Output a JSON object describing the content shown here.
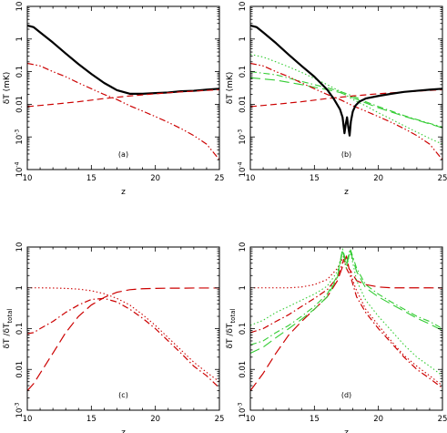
{
  "figure": {
    "colors": {
      "black": "#000000",
      "red": "#cc0000",
      "green": "#33cc33"
    }
  },
  "chart_data": [
    {
      "id": "a",
      "type": "line",
      "panel_label": "(a)",
      "xlabel": "z",
      "ylabel": "δT (mK)",
      "ylabel_parts": [
        {
          "t": "δT  (mK)"
        }
      ],
      "xlim": [
        10,
        25
      ],
      "ylim": [
        0.0001,
        10
      ],
      "yscale": "log",
      "xticks": [
        10,
        15,
        20,
        25
      ],
      "xtick_labels": [
        "10",
        "15",
        "20",
        "25"
      ],
      "yticks": [
        0.0001,
        0.001,
        0.01,
        0.1,
        1,
        10
      ],
      "ytick_labels": [
        {
          "b": "10",
          "e": "-4"
        },
        {
          "b": "10",
          "e": "-3"
        },
        {
          "b": "0.01"
        },
        {
          "b": "0.1"
        },
        {
          "b": "1"
        },
        {
          "b": "10"
        }
      ],
      "series": [
        {
          "color": "#000000",
          "style": "solid",
          "width": 2.2,
          "x": [
            10,
            10.5,
            11,
            12,
            13,
            14,
            15,
            16,
            17,
            18,
            19,
            20,
            21,
            22,
            23,
            24,
            25
          ],
          "y": [
            2.6,
            2.3,
            1.6,
            0.78,
            0.36,
            0.17,
            0.085,
            0.045,
            0.027,
            0.021,
            0.021,
            0.022,
            0.023,
            0.025,
            0.026,
            0.028,
            0.03
          ]
        },
        {
          "color": "#cc0000",
          "style": "dash",
          "width": 1.2,
          "x": [
            10,
            12,
            14,
            16,
            18,
            20,
            22,
            25
          ],
          "y": [
            0.0085,
            0.01,
            0.012,
            0.015,
            0.018,
            0.021,
            0.024,
            0.028
          ]
        },
        {
          "color": "#cc0000",
          "style": "dashdotdot",
          "width": 1.2,
          "x": [
            10,
            11,
            12,
            13,
            14,
            15,
            16,
            17,
            18,
            19,
            20,
            21,
            22,
            23,
            24,
            25
          ],
          "y": [
            0.18,
            0.15,
            0.1,
            0.07,
            0.045,
            0.03,
            0.02,
            0.014,
            0.009,
            0.0062,
            0.0042,
            0.0028,
            0.0018,
            0.0011,
            0.0006,
            0.0002
          ]
        }
      ]
    },
    {
      "id": "b",
      "type": "line",
      "panel_label": "(b)",
      "xlabel": "z",
      "ylabel": "δT (mK)",
      "ylabel_parts": [
        {
          "t": "δT  (mK)"
        }
      ],
      "xlim": [
        10,
        25
      ],
      "ylim": [
        0.0001,
        10
      ],
      "yscale": "log",
      "xticks": [
        10,
        15,
        20,
        25
      ],
      "xtick_labels": [
        "10",
        "15",
        "20",
        "25"
      ],
      "yticks": [
        0.0001,
        0.001,
        0.01,
        0.1,
        1,
        10
      ],
      "ytick_labels": [
        {
          "b": "10",
          "e": "-4"
        },
        {
          "b": "10",
          "e": "-3"
        },
        {
          "b": "0.01"
        },
        {
          "b": "0.1"
        },
        {
          "b": "1"
        },
        {
          "b": "10"
        }
      ],
      "series": [
        {
          "color": "#33cc33",
          "style": "dot",
          "width": 1.1,
          "x": [
            10,
            11,
            12,
            13,
            14,
            15,
            16,
            17,
            18,
            19,
            20,
            21,
            22,
            23,
            24,
            25
          ],
          "y": [
            0.34,
            0.28,
            0.2,
            0.14,
            0.095,
            0.062,
            0.04,
            0.025,
            0.014,
            0.009,
            0.0055,
            0.0035,
            0.0022,
            0.0014,
            0.0009,
            0.0006
          ]
        },
        {
          "color": "#33cc33",
          "style": "dashdot",
          "width": 1.1,
          "x": [
            10,
            12,
            14,
            16,
            17,
            18,
            19,
            20,
            21,
            22,
            23,
            24,
            25
          ],
          "y": [
            0.1,
            0.08,
            0.05,
            0.032,
            0.025,
            0.018,
            0.012,
            0.0085,
            0.0062,
            0.0045,
            0.0034,
            0.0026,
            0.002
          ]
        },
        {
          "color": "#33cc33",
          "style": "longdash",
          "width": 1.1,
          "x": [
            10,
            12,
            14,
            16,
            17,
            18,
            19,
            20,
            21,
            22,
            23,
            24,
            25
          ],
          "y": [
            0.065,
            0.055,
            0.04,
            0.028,
            0.023,
            0.016,
            0.011,
            0.0078,
            0.0058,
            0.0043,
            0.0033,
            0.0025,
            0.0019
          ]
        },
        {
          "color": "#cc0000",
          "style": "dash",
          "width": 1.2,
          "x": [
            10,
            12,
            14,
            16,
            18,
            20,
            22,
            25
          ],
          "y": [
            0.0085,
            0.01,
            0.012,
            0.015,
            0.018,
            0.021,
            0.024,
            0.028
          ]
        },
        {
          "color": "#cc0000",
          "style": "dashdotdot",
          "width": 1.2,
          "x": [
            10,
            11,
            12,
            13,
            14,
            15,
            16,
            17,
            18,
            19,
            20,
            21,
            22,
            23,
            24,
            25
          ],
          "y": [
            0.18,
            0.15,
            0.1,
            0.07,
            0.045,
            0.03,
            0.02,
            0.014,
            0.009,
            0.0062,
            0.0042,
            0.0028,
            0.0018,
            0.0011,
            0.0006,
            0.0002
          ]
        },
        {
          "color": "#000000",
          "style": "solid",
          "width": 2.2,
          "x": [
            10,
            10.5,
            11,
            12,
            13,
            14,
            15,
            16,
            16.5,
            17,
            17.2,
            17.35,
            17.45,
            17.55,
            17.65,
            17.75,
            17.85,
            18.0,
            18.2,
            18.5,
            19,
            20,
            21,
            22,
            23,
            24,
            25
          ],
          "y": [
            2.6,
            2.3,
            1.6,
            0.75,
            0.33,
            0.15,
            0.07,
            0.028,
            0.015,
            0.007,
            0.004,
            0.0013,
            0.0025,
            0.004,
            0.002,
            0.0011,
            0.003,
            0.006,
            0.009,
            0.012,
            0.015,
            0.018,
            0.021,
            0.024,
            0.026,
            0.028,
            0.03
          ]
        }
      ]
    },
    {
      "id": "c",
      "type": "line",
      "panel_label": "(c)",
      "xlabel": "z",
      "ylabel": "δT / δT total",
      "ylabel_parts": [
        {
          "t": "δT  /δT"
        },
        {
          "t": "total",
          "sub": true
        }
      ],
      "xlim": [
        10,
        25
      ],
      "ylim": [
        0.001,
        10
      ],
      "yscale": "log",
      "xticks": [
        10,
        15,
        20,
        25
      ],
      "xtick_labels": [
        "10",
        "15",
        "20",
        "25"
      ],
      "yticks": [
        0.001,
        0.01,
        0.1,
        1,
        10
      ],
      "ytick_labels": [
        {
          "b": "10",
          "e": "-3"
        },
        {
          "b": "0.01"
        },
        {
          "b": "0.1"
        },
        {
          "b": "1"
        },
        {
          "b": "10"
        }
      ],
      "series": [
        {
          "color": "#cc0000",
          "style": "dot",
          "width": 1.1,
          "x": [
            10,
            11,
            12,
            13,
            14,
            15,
            16,
            17,
            18,
            19,
            20,
            21,
            22,
            23,
            24,
            25
          ],
          "y": [
            1,
            1,
            0.99,
            0.97,
            0.93,
            0.85,
            0.72,
            0.55,
            0.38,
            0.22,
            0.12,
            0.06,
            0.03,
            0.015,
            0.0085,
            0.005
          ]
        },
        {
          "color": "#cc0000",
          "style": "dashdot",
          "width": 1.2,
          "x": [
            10,
            10.5,
            11,
            12,
            13,
            14,
            15,
            16,
            17,
            18,
            19,
            20,
            21,
            22,
            23,
            24,
            25
          ],
          "y": [
            0.075,
            0.08,
            0.1,
            0.15,
            0.25,
            0.38,
            0.52,
            0.55,
            0.45,
            0.3,
            0.18,
            0.1,
            0.05,
            0.025,
            0.012,
            0.007,
            0.0035
          ]
        },
        {
          "color": "#cc0000",
          "style": "longdash",
          "width": 1.2,
          "x": [
            10,
            10.5,
            11,
            12,
            13,
            14,
            15,
            16,
            17,
            18,
            19,
            20,
            21,
            22,
            23,
            24,
            25
          ],
          "y": [
            0.003,
            0.0045,
            0.008,
            0.025,
            0.08,
            0.2,
            0.38,
            0.58,
            0.78,
            0.9,
            0.95,
            0.97,
            0.98,
            0.98,
            0.99,
            0.99,
            0.99
          ]
        }
      ]
    },
    {
      "id": "d",
      "type": "line",
      "panel_label": "(d)",
      "xlabel": "z",
      "ylabel": "δT / δT total",
      "ylabel_parts": [
        {
          "t": "δT  /δT"
        },
        {
          "t": "total",
          "sub": true
        }
      ],
      "xlim": [
        10,
        25
      ],
      "ylim": [
        0.001,
        10
      ],
      "yscale": "log",
      "xticks": [
        10,
        15,
        20,
        25
      ],
      "xtick_labels": [
        "10",
        "15",
        "20",
        "25"
      ],
      "yticks": [
        0.001,
        0.01,
        0.1,
        1,
        10
      ],
      "ytick_labels": [
        {
          "b": "10",
          "e": "-3"
        },
        {
          "b": "0.01"
        },
        {
          "b": "0.1"
        },
        {
          "b": "1"
        },
        {
          "b": "10"
        }
      ],
      "series": [
        {
          "color": "#cc0000",
          "style": "dot",
          "width": 1.1,
          "x": [
            10,
            11,
            12,
            13,
            14,
            15,
            16,
            16.8,
            17.3,
            17.5,
            17.7,
            18.2,
            19,
            20,
            21,
            22,
            23,
            24,
            25
          ],
          "y": [
            1,
            1,
            1,
            1,
            1.05,
            1.2,
            1.6,
            3,
            6,
            4,
            3,
            1,
            0.3,
            0.12,
            0.05,
            0.022,
            0.012,
            0.007,
            0.004
          ]
        },
        {
          "color": "#cc0000",
          "style": "dashdot",
          "width": 1.2,
          "x": [
            10,
            11,
            12,
            13,
            14,
            15,
            16,
            16.8,
            17.3,
            17.5,
            17.8,
            18.3,
            19,
            20,
            21,
            22,
            23,
            24,
            25
          ],
          "y": [
            0.08,
            0.1,
            0.15,
            0.22,
            0.35,
            0.55,
            0.9,
            1.8,
            5,
            3,
            2,
            0.6,
            0.25,
            0.1,
            0.045,
            0.02,
            0.01,
            0.006,
            0.0035
          ]
        },
        {
          "color": "#cc0000",
          "style": "longdash",
          "width": 1.2,
          "x": [
            10,
            11,
            12,
            13,
            14,
            15,
            16,
            16.8,
            17.3,
            17.5,
            17.7,
            18.3,
            19,
            20,
            21,
            22,
            23,
            24,
            25
          ],
          "y": [
            0.003,
            0.008,
            0.025,
            0.07,
            0.15,
            0.3,
            0.6,
            1.5,
            4,
            6,
            3,
            1.5,
            1.2,
            1.05,
            1,
            1,
            1,
            1,
            0.99
          ]
        },
        {
          "color": "#33cc33",
          "style": "dot",
          "width": 1.1,
          "x": [
            10,
            11,
            12,
            13,
            14,
            15,
            16,
            16.8,
            17.2,
            17.5,
            17.8,
            18.3,
            19,
            20,
            21,
            22,
            23,
            24,
            25
          ],
          "y": [
            0.12,
            0.16,
            0.25,
            0.35,
            0.5,
            0.7,
            1.1,
            2.5,
            8,
            3,
            8,
            1.5,
            0.5,
            0.2,
            0.09,
            0.04,
            0.02,
            0.012,
            0.007
          ]
        },
        {
          "color": "#33cc33",
          "style": "dashdot",
          "width": 1.1,
          "x": [
            10,
            11,
            12,
            13,
            14,
            15,
            16,
            16.8,
            17.2,
            17.5,
            17.8,
            18.3,
            19,
            20,
            21,
            22,
            23,
            24,
            25
          ],
          "y": [
            0.04,
            0.05,
            0.08,
            0.12,
            0.2,
            0.35,
            0.7,
            2,
            9,
            4,
            9,
            3,
            1.2,
            0.7,
            0.45,
            0.3,
            0.2,
            0.15,
            0.1
          ]
        },
        {
          "color": "#33cc33",
          "style": "longdash",
          "width": 1.1,
          "x": [
            10,
            11,
            12,
            13,
            14,
            15,
            16,
            16.8,
            17.2,
            17.5,
            17.8,
            18.3,
            19,
            20,
            21,
            22,
            23,
            24,
            25
          ],
          "y": [
            0.025,
            0.035,
            0.06,
            0.1,
            0.17,
            0.3,
            0.6,
            1.8,
            8,
            3.5,
            8,
            2.5,
            1,
            0.6,
            0.4,
            0.27,
            0.18,
            0.13,
            0.09
          ]
        }
      ]
    }
  ]
}
